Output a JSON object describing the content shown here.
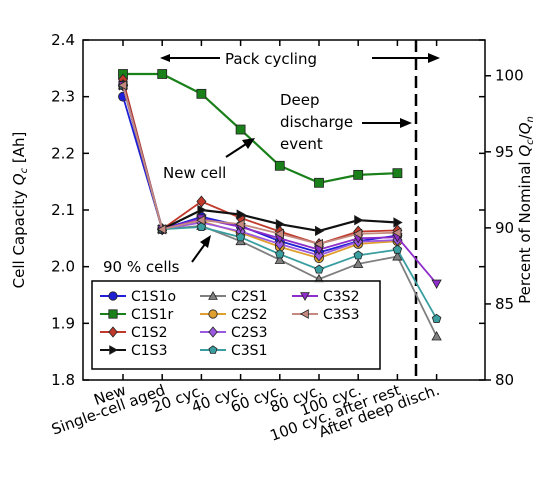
{
  "chart_data": {
    "type": "line",
    "categories": [
      "New",
      "Single-cell aged",
      "20 cyc.",
      "40 cyc.",
      "60 cyc.",
      "80 cyc.",
      "100 cyc.",
      "100 cyc. after rest",
      "After deep disch."
    ],
    "ylabel_left": "Cell Capacity Q_c [Ah]",
    "ylabel_right": "Percent of Nominal Q_c/Q_n",
    "ylim_left": [
      1.8,
      2.4
    ],
    "ylim_right": [
      80,
      102.35
    ],
    "yticks_left": [
      "1.8",
      "1.9",
      "2.0",
      "2.1",
      "2.2",
      "2.3",
      "2.4"
    ],
    "yticks_right": [
      "80",
      "85",
      "90",
      "95",
      "100"
    ],
    "grid": false,
    "legend_position": "lower-left",
    "annotations": {
      "pack_cycling": "Pack cycling",
      "deep_discharge_1": "Deep",
      "deep_discharge_2": "discharge",
      "deep_discharge_3": "event",
      "new_cell": "New cell",
      "ninety_cells": "90 % cells"
    },
    "series": [
      {
        "name": "C1S1o",
        "color": "#1f1fd6",
        "marker": "circle",
        "values": [
          2.3,
          2.066,
          2.088,
          2.072,
          2.045,
          2.025,
          2.045,
          2.055,
          null
        ]
      },
      {
        "name": "C1S1r",
        "color": "#1a801a",
        "marker": "square",
        "values": [
          2.34,
          2.34,
          2.305,
          2.242,
          2.178,
          2.148,
          2.162,
          2.165,
          null
        ]
      },
      {
        "name": "C1S2",
        "color": "#c0392b",
        "marker": "diamond",
        "values": [
          2.33,
          2.066,
          2.115,
          2.086,
          2.062,
          2.04,
          2.062,
          2.064,
          null
        ]
      },
      {
        "name": "C1S3",
        "color": "#111111",
        "marker": "triangle-right",
        "values": [
          2.32,
          2.066,
          2.1,
          2.092,
          2.075,
          2.063,
          2.082,
          2.078,
          null
        ]
      },
      {
        "name": "C2S1",
        "color": "#7f7f7f",
        "marker": "triangle-up",
        "values": [
          2.32,
          2.066,
          2.072,
          2.045,
          2.012,
          1.978,
          2.005,
          2.018,
          1.877
        ]
      },
      {
        "name": "C2S2",
        "color": "#e0a030",
        "marker": "circle",
        "values": [
          2.32,
          2.066,
          2.08,
          2.06,
          2.035,
          2.015,
          2.04,
          2.045,
          null
        ]
      },
      {
        "name": "C2S3",
        "color": "#9b59e0",
        "marker": "diamond",
        "values": [
          2.32,
          2.066,
          2.078,
          2.062,
          2.04,
          2.02,
          2.044,
          2.047,
          null
        ]
      },
      {
        "name": "C3S1",
        "color": "#3a9ea0",
        "marker": "pentagon",
        "values": [
          2.32,
          2.066,
          2.07,
          2.052,
          2.022,
          1.995,
          2.02,
          2.03,
          1.908
        ]
      },
      {
        "name": "C3S2",
        "color": "#8e2ec8",
        "marker": "triangle-down",
        "values": [
          2.32,
          2.066,
          2.085,
          2.07,
          2.05,
          2.03,
          2.05,
          2.052,
          1.97
        ]
      },
      {
        "name": "C3S3",
        "color": "#c48a80",
        "marker": "triangle-left",
        "values": [
          2.32,
          2.066,
          2.082,
          2.075,
          2.058,
          2.04,
          2.058,
          2.06,
          null
        ]
      }
    ]
  }
}
